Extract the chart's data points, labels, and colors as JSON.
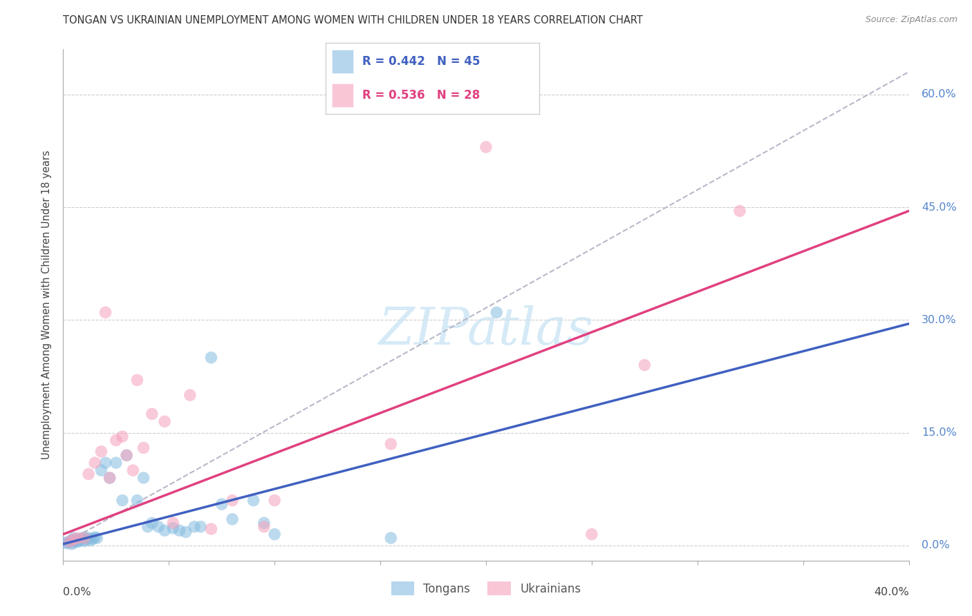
{
  "title": "TONGAN VS UKRAINIAN UNEMPLOYMENT AMONG WOMEN WITH CHILDREN UNDER 18 YEARS CORRELATION CHART",
  "source": "Source: ZipAtlas.com",
  "ylabel": "Unemployment Among Women with Children Under 18 years",
  "ytick_values": [
    0.0,
    0.15,
    0.3,
    0.45,
    0.6
  ],
  "ytick_labels": [
    "0.0%",
    "15.0%",
    "30.0%",
    "45.0%",
    "60.0%"
  ],
  "xmin": 0.0,
  "xmax": 0.4,
  "ymin": -0.02,
  "ymax": 0.66,
  "tongan_R": 0.442,
  "tongan_N": 45,
  "ukrainian_R": 0.536,
  "ukrainian_N": 28,
  "tongan_color": "#85bce0",
  "ukrainian_color": "#f5a0bc",
  "tongan_line_color": "#4060c0",
  "ukrainian_line_color": "#e04080",
  "dashed_line_color": "#b8b8c8",
  "right_axis_color": "#5585cc",
  "watermark_color": "#c8e4f4",
  "tongan_label_color": "#4060c0",
  "ukrainian_label_color": "#e04080",
  "background_color": "#ffffff",
  "tongan_x": [
    0.001,
    0.002,
    0.003,
    0.004,
    0.004,
    0.005,
    0.005,
    0.006,
    0.007,
    0.007,
    0.008,
    0.009,
    0.01,
    0.01,
    0.011,
    0.012,
    0.013,
    0.014,
    0.015,
    0.016,
    0.018,
    0.02,
    0.022,
    0.025,
    0.028,
    0.03,
    0.035,
    0.038,
    0.04,
    0.042,
    0.045,
    0.048,
    0.052,
    0.055,
    0.058,
    0.062,
    0.065,
    0.07,
    0.075,
    0.08,
    0.09,
    0.095,
    0.1,
    0.155,
    0.205
  ],
  "tongan_y": [
    0.004,
    0.003,
    0.005,
    0.002,
    0.007,
    0.004,
    0.01,
    0.006,
    0.005,
    0.008,
    0.007,
    0.009,
    0.006,
    0.011,
    0.008,
    0.01,
    0.007,
    0.009,
    0.011,
    0.01,
    0.1,
    0.11,
    0.09,
    0.11,
    0.06,
    0.12,
    0.06,
    0.09,
    0.025,
    0.03,
    0.025,
    0.02,
    0.023,
    0.02,
    0.018,
    0.025,
    0.025,
    0.25,
    0.055,
    0.035,
    0.06,
    0.03,
    0.015,
    0.01,
    0.31
  ],
  "ukrainian_x": [
    0.003,
    0.005,
    0.007,
    0.01,
    0.012,
    0.015,
    0.018,
    0.02,
    0.022,
    0.025,
    0.028,
    0.03,
    0.033,
    0.035,
    0.038,
    0.042,
    0.048,
    0.052,
    0.06,
    0.07,
    0.08,
    0.095,
    0.1,
    0.155,
    0.2,
    0.25,
    0.275,
    0.32
  ],
  "ukrainian_y": [
    0.005,
    0.008,
    0.01,
    0.01,
    0.095,
    0.11,
    0.125,
    0.31,
    0.09,
    0.14,
    0.145,
    0.12,
    0.1,
    0.22,
    0.13,
    0.175,
    0.165,
    0.03,
    0.2,
    0.022,
    0.06,
    0.025,
    0.06,
    0.135,
    0.53,
    0.015,
    0.24,
    0.445
  ],
  "tongan_line_x": [
    0.0,
    0.4
  ],
  "tongan_line_y": [
    0.002,
    0.295
  ],
  "ukrainian_line_x": [
    0.0,
    0.4
  ],
  "ukrainian_line_y": [
    0.015,
    0.445
  ]
}
